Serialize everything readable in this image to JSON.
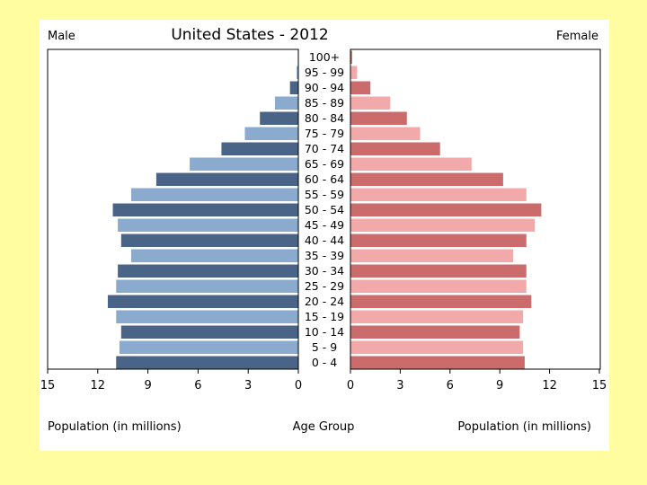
{
  "chart_data": {
    "type": "bar",
    "title": "United States - 2012",
    "left_label": "Male",
    "right_label": "Female",
    "left_xlabel": "Population (in millions)",
    "center_xlabel": "Age Group",
    "right_xlabel": "Population (in millions)",
    "xlim": [
      0,
      15
    ],
    "ticks": [
      15,
      12,
      9,
      6,
      3,
      0
    ],
    "ticks_right": [
      0,
      3,
      6,
      9,
      12,
      15
    ],
    "categories": [
      "100+",
      "95 - 99",
      "90 - 94",
      "85 - 89",
      "80 - 84",
      "75 - 79",
      "70 - 74",
      "65 - 69",
      "60 - 64",
      "55 - 59",
      "50 - 54",
      "45 - 49",
      "40 - 44",
      "35 - 39",
      "30 - 34",
      "25 - 29",
      "20 - 24",
      "15 - 19",
      "10 - 14",
      "5 - 9",
      "0 - 4"
    ],
    "series": [
      {
        "name": "Male",
        "values": [
          0.0,
          0.1,
          0.5,
          1.4,
          2.3,
          3.2,
          4.6,
          6.5,
          8.5,
          10.0,
          11.1,
          10.8,
          10.6,
          10.0,
          10.8,
          10.9,
          11.4,
          10.9,
          10.6,
          10.7,
          10.9
        ]
      },
      {
        "name": "Female",
        "values": [
          0.1,
          0.4,
          1.2,
          2.4,
          3.4,
          4.2,
          5.4,
          7.3,
          9.2,
          10.6,
          11.5,
          11.1,
          10.6,
          9.8,
          10.6,
          10.6,
          10.9,
          10.4,
          10.2,
          10.4,
          10.5
        ]
      }
    ],
    "colors": {
      "male_dark": "#4a6488",
      "male_light": "#8aaace",
      "female_dark": "#cc6b6b",
      "female_light": "#f2a9a9"
    }
  }
}
